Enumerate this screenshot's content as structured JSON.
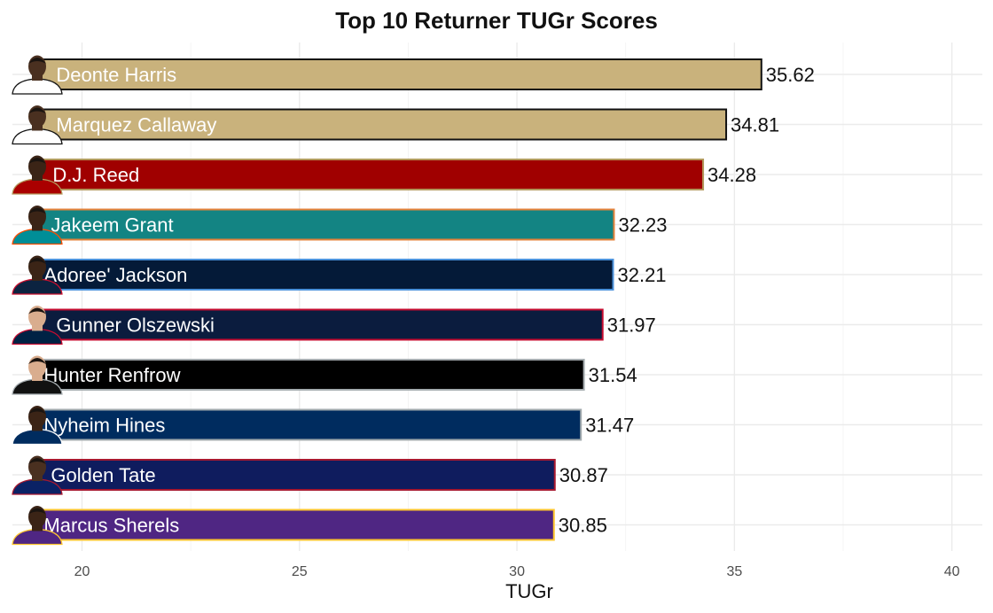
{
  "chart_data": {
    "type": "bar",
    "orientation": "horizontal",
    "title": "Top 10 Returner TUGr Scores",
    "xlabel": "TUGr",
    "ylabel": "",
    "xlim": [
      18.4,
      40.7
    ],
    "bar_base": 19,
    "xticks": [
      20,
      25,
      30,
      35,
      40
    ],
    "grid": true,
    "legend": "none",
    "series": [
      {
        "name": "Deonte Harris",
        "value": 35.62,
        "fill": "#C9B27C",
        "border": "#111111"
      },
      {
        "name": "Marquez Callaway",
        "value": 34.81,
        "fill": "#C9B27C",
        "border": "#111111"
      },
      {
        "name": "D.J. Reed",
        "value": 34.28,
        "fill": "#A00000",
        "border": "#B3995D"
      },
      {
        "name": "Jakeem Grant",
        "value": 32.23,
        "fill": "#138483",
        "border": "#E3823A"
      },
      {
        "name": "Adoree' Jackson",
        "value": 32.21,
        "fill": "#041A38",
        "border": "#4B92DB"
      },
      {
        "name": "Gunner Olszewski",
        "value": 31.97,
        "fill": "#0B1C3E",
        "border": "#C60C30"
      },
      {
        "name": "Hunter Renfrow",
        "value": 31.54,
        "fill": "#000000",
        "border": "#A5ACAF"
      },
      {
        "name": "Nyheim Hines",
        "value": 31.47,
        "fill": "#002C5F",
        "border": "#A2AAAD"
      },
      {
        "name": "Golden Tate",
        "value": 30.87,
        "fill": "#0F1C5E",
        "border": "#A71930"
      },
      {
        "name": "Marcus Sherels",
        "value": 30.85,
        "fill": "#4F2683",
        "border": "#FFC62F"
      }
    ]
  },
  "headshots": [
    {
      "player": "Deonte Harris",
      "jersey": "#FFFFFF",
      "trim": "#111111",
      "skin": "#4a3020"
    },
    {
      "player": "Marquez Callaway",
      "jersey": "#FFFFFF",
      "trim": "#111111",
      "skin": "#4a3020"
    },
    {
      "player": "D.J. Reed",
      "jersey": "#AA0000",
      "trim": "#B3995D",
      "skin": "#3b2416"
    },
    {
      "player": "Jakeem Grant",
      "jersey": "#008E97",
      "trim": "#FC4C02",
      "skin": "#3b2416"
    },
    {
      "player": "Adoree' Jackson",
      "jersey": "#0C2340",
      "trim": "#C8102E",
      "skin": "#3b2416"
    },
    {
      "player": "Gunner Olszewski",
      "jersey": "#002244",
      "trim": "#C60C30",
      "skin": "#d9ad8e"
    },
    {
      "player": "Hunter Renfrow",
      "jersey": "#111111",
      "trim": "#A5ACAF",
      "skin": "#d9ad8e"
    },
    {
      "player": "Nyheim Hines",
      "jersey": "#002C5F",
      "trim": "#FFFFFF",
      "skin": "#3b2416"
    },
    {
      "player": "Golden Tate",
      "jersey": "#0B2265",
      "trim": "#A71930",
      "skin": "#4a3020"
    },
    {
      "player": "Marcus Sherels",
      "jersey": "#4F2683",
      "trim": "#FFC62F",
      "skin": "#3b2416"
    }
  ]
}
